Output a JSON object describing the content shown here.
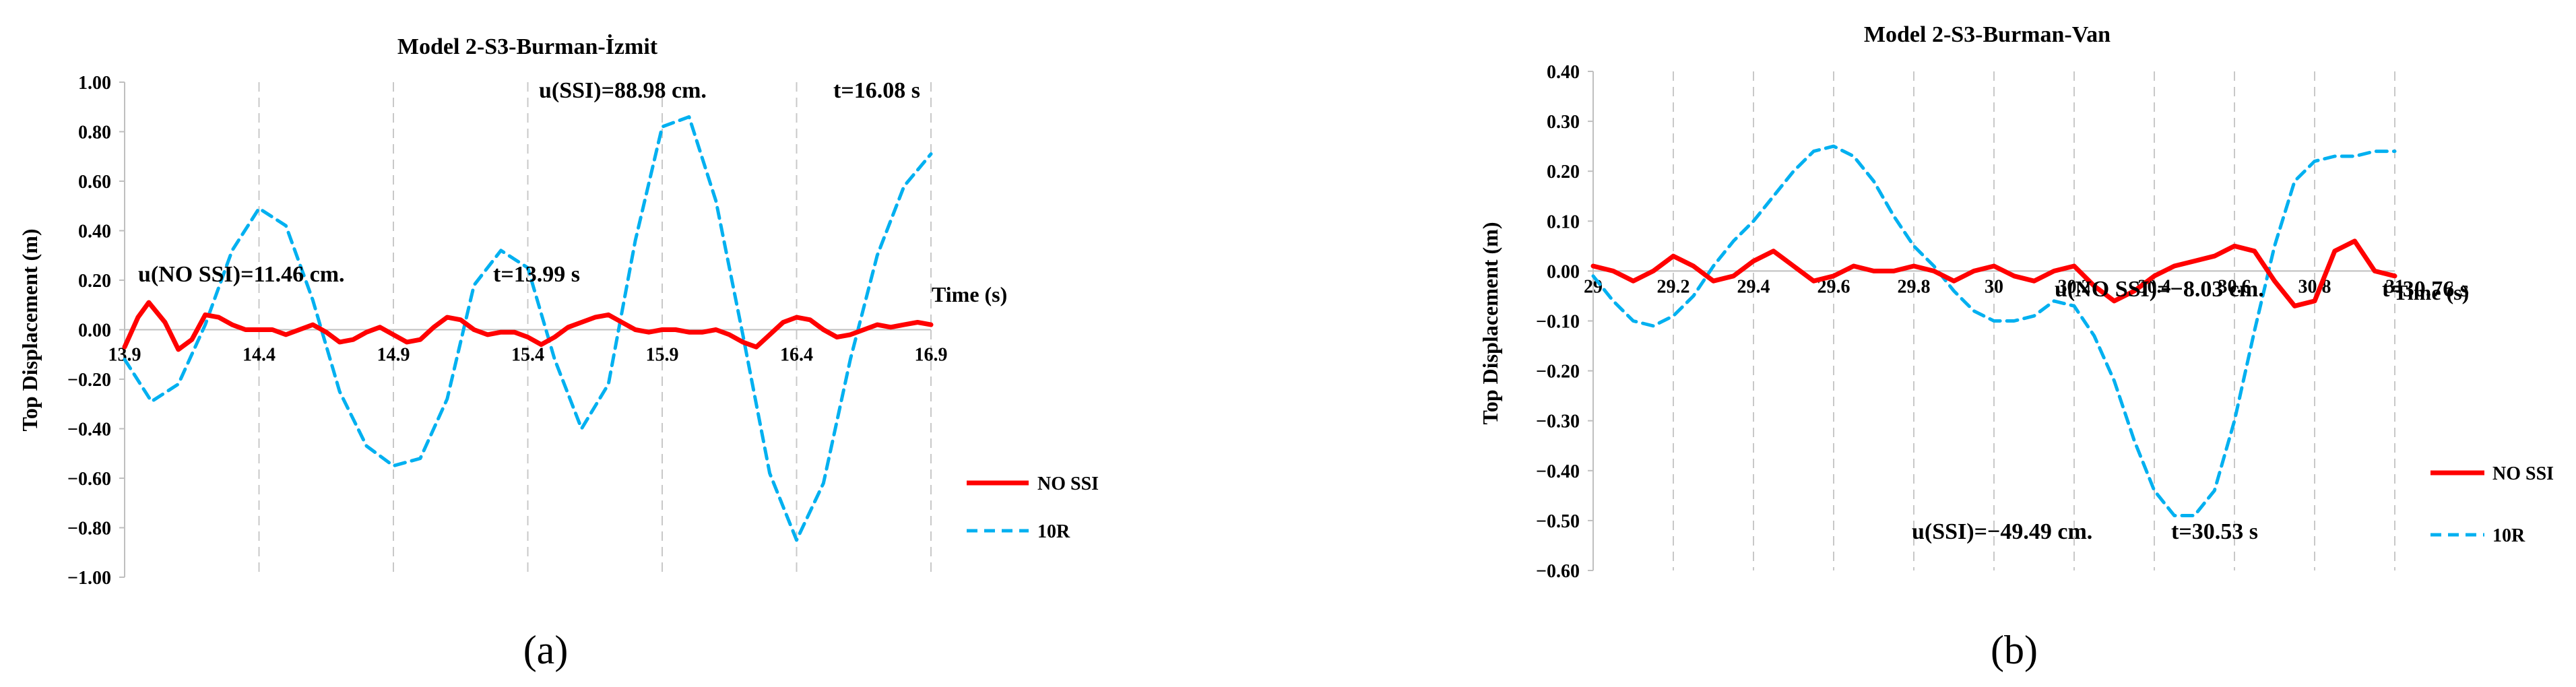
{
  "chart_data": [
    {
      "type": "line",
      "panel_label": "(a)",
      "title": "Model 2-S3-Burman-İzmit",
      "ylabel": "Top Displacement  (m)",
      "xlabel": "Time (s)",
      "xlim": [
        13.9,
        16.9
      ],
      "ylim": [
        -1.0,
        1.0
      ],
      "x_ticks": [
        13.9,
        14.4,
        14.9,
        15.4,
        15.9,
        16.4,
        16.9
      ],
      "x_tick_labels": [
        "13.9",
        "14.4",
        "14.9",
        "15.4",
        "15.9",
        "16.4",
        "16.9"
      ],
      "y_ticks": [
        1.0,
        0.8,
        0.6,
        0.4,
        0.2,
        0.0,
        -0.2,
        -0.4,
        -0.6,
        -0.8,
        -1.0
      ],
      "y_tick_labels": [
        "1.00",
        "0.80",
        "0.60",
        "0.40",
        "0.20",
        "0.00",
        "−0.20",
        "−0.40",
        "−0.60",
        "−0.80",
        "−1.00"
      ],
      "grid": "vertical-dashed",
      "legend_position": "right",
      "annotations": [
        {
          "text": "u(SSI)=88.98 cm.",
          "x": 15.95,
          "y": 0.91
        },
        {
          "text": "t=16.08 s",
          "x": 16.55,
          "y": 0.91
        },
        {
          "text": "u(NO SSI)=11.46 cm.",
          "x": 13.95,
          "y": 0.16
        },
        {
          "text": "t=13.99 s",
          "x": 15.25,
          "y": 0.16
        }
      ],
      "series": [
        {
          "name": "NO SSI",
          "color": "#ff0000",
          "style": "solid",
          "x": [
            13.9,
            13.95,
            13.99,
            14.05,
            14.1,
            14.15,
            14.2,
            14.25,
            14.3,
            14.35,
            14.4,
            14.45,
            14.5,
            14.55,
            14.6,
            14.65,
            14.7,
            14.75,
            14.8,
            14.85,
            14.9,
            14.95,
            15.0,
            15.05,
            15.1,
            15.15,
            15.2,
            15.25,
            15.3,
            15.35,
            15.4,
            15.45,
            15.5,
            15.55,
            15.6,
            15.65,
            15.7,
            15.75,
            15.8,
            15.85,
            15.9,
            15.95,
            16.0,
            16.05,
            16.1,
            16.15,
            16.2,
            16.25,
            16.3,
            16.35,
            16.4,
            16.45,
            16.5,
            16.55,
            16.6,
            16.65,
            16.7,
            16.75,
            16.8,
            16.85,
            16.9
          ],
          "y": [
            -0.07,
            0.05,
            0.11,
            0.03,
            -0.08,
            -0.04,
            0.06,
            0.05,
            0.02,
            0.0,
            0.0,
            0.0,
            -0.02,
            0.0,
            0.02,
            -0.01,
            -0.05,
            -0.04,
            -0.01,
            0.01,
            -0.02,
            -0.05,
            -0.04,
            0.01,
            0.05,
            0.04,
            0.0,
            -0.02,
            -0.01,
            -0.01,
            -0.03,
            -0.06,
            -0.03,
            0.01,
            0.03,
            0.05,
            0.06,
            0.03,
            0.0,
            -0.01,
            0.0,
            0.0,
            -0.01,
            -0.01,
            0.0,
            -0.02,
            -0.05,
            -0.07,
            -0.02,
            0.03,
            0.05,
            0.04,
            0.0,
            -0.03,
            -0.02,
            0.0,
            0.02,
            0.01,
            0.02,
            0.03,
            0.02
          ]
        },
        {
          "name": "10R",
          "color": "#00b0f0",
          "style": "dashed",
          "x": [
            13.9,
            14.0,
            14.1,
            14.2,
            14.3,
            14.4,
            14.5,
            14.6,
            14.7,
            14.8,
            14.9,
            15.0,
            15.1,
            15.2,
            15.3,
            15.4,
            15.5,
            15.6,
            15.7,
            15.8,
            15.9,
            16.0,
            16.1,
            16.2,
            16.3,
            16.4,
            16.5,
            16.6,
            16.7,
            16.8,
            16.9
          ],
          "y": [
            -0.12,
            -0.29,
            -0.22,
            0.02,
            0.32,
            0.49,
            0.42,
            0.12,
            -0.25,
            -0.47,
            -0.55,
            -0.52,
            -0.28,
            0.18,
            0.32,
            0.25,
            -0.12,
            -0.4,
            -0.22,
            0.36,
            0.82,
            0.86,
            0.52,
            -0.02,
            -0.58,
            -0.85,
            -0.62,
            -0.12,
            0.3,
            0.58,
            0.71
          ]
        }
      ]
    },
    {
      "type": "line",
      "panel_label": "(b)",
      "title": "Model 2-S3-Burman-Van",
      "ylabel": "Top Displacement  (m)",
      "xlabel": "Time (s)",
      "xlim": [
        29.0,
        31.0
      ],
      "ylim": [
        -0.6,
        0.4
      ],
      "x_ticks": [
        29.0,
        29.2,
        29.4,
        29.6,
        29.8,
        30.0,
        30.2,
        30.4,
        30.6,
        30.8,
        31.0
      ],
      "x_tick_labels": [
        "29",
        "29.2",
        "29.4",
        "29.6",
        "29.8",
        "30",
        "30.2",
        "30.4",
        "30.6",
        "30.8",
        "31"
      ],
      "y_ticks": [
        0.4,
        0.3,
        0.2,
        0.1,
        0.0,
        -0.1,
        -0.2,
        -0.3,
        -0.4,
        -0.5,
        -0.6
      ],
      "y_tick_labels": [
        "0.40",
        "0.30",
        "0.20",
        "0.10",
        "0.00",
        "−0.10",
        "−0.20",
        "−0.30",
        "−0.40",
        "−0.50",
        "−0.60"
      ],
      "grid": "vertical-dashed",
      "legend_position": "right",
      "annotations": [
        {
          "text": "u(NO SSI)=−8.03 cm.",
          "x": 30.14,
          "y": -0.095
        },
        {
          "text": "t=30.76 s",
          "x": 30.8,
          "y": -0.095
        },
        {
          "text": "u(SSI)=−49.49 cm.",
          "x": 29.82,
          "y": -0.54
        },
        {
          "text": "t=30.53 s",
          "x": 30.46,
          "y": -0.54
        }
      ],
      "series": [
        {
          "name": "NO SSI",
          "color": "#ff0000",
          "style": "solid",
          "x": [
            29.0,
            29.05,
            29.1,
            29.15,
            29.2,
            29.25,
            29.3,
            29.35,
            29.4,
            29.45,
            29.5,
            29.55,
            29.6,
            29.65,
            29.7,
            29.75,
            29.8,
            29.85,
            29.9,
            29.95,
            30.0,
            30.05,
            30.1,
            30.15,
            30.2,
            30.25,
            30.3,
            30.35,
            30.4,
            30.45,
            30.5,
            30.55,
            30.6,
            30.65,
            30.7,
            30.75,
            30.8,
            30.85,
            30.9,
            30.95,
            31.0
          ],
          "y": [
            0.01,
            0.0,
            -0.02,
            0.0,
            0.03,
            0.01,
            -0.02,
            -0.01,
            0.02,
            0.04,
            0.01,
            -0.02,
            -0.01,
            0.01,
            0.0,
            0.0,
            0.01,
            0.0,
            -0.02,
            0.0,
            0.01,
            -0.01,
            -0.02,
            0.0,
            0.01,
            -0.03,
            -0.06,
            -0.04,
            -0.01,
            0.01,
            0.02,
            0.03,
            0.05,
            0.04,
            -0.02,
            -0.07,
            -0.06,
            0.04,
            0.06,
            0.0,
            -0.01
          ]
        },
        {
          "name": "10R",
          "color": "#00b0f0",
          "style": "dashed",
          "x": [
            29.0,
            29.05,
            29.1,
            29.15,
            29.2,
            29.25,
            29.3,
            29.35,
            29.4,
            29.45,
            29.5,
            29.55,
            29.6,
            29.65,
            29.7,
            29.75,
            29.8,
            29.85,
            29.9,
            29.95,
            30.0,
            30.05,
            30.1,
            30.15,
            30.2,
            30.25,
            30.3,
            30.35,
            30.4,
            30.45,
            30.5,
            30.55,
            30.6,
            30.65,
            30.7,
            30.75,
            30.8,
            30.85,
            30.9,
            30.95,
            31.0
          ],
          "y": [
            -0.01,
            -0.06,
            -0.1,
            -0.11,
            -0.09,
            -0.05,
            0.01,
            0.06,
            0.1,
            0.15,
            0.2,
            0.24,
            0.25,
            0.23,
            0.18,
            0.11,
            0.05,
            0.01,
            -0.04,
            -0.08,
            -0.1,
            -0.1,
            -0.09,
            -0.06,
            -0.07,
            -0.13,
            -0.22,
            -0.34,
            -0.44,
            -0.49,
            -0.49,
            -0.44,
            -0.3,
            -0.12,
            0.05,
            0.18,
            0.22,
            0.23,
            0.23,
            0.24,
            0.24
          ]
        }
      ]
    }
  ]
}
